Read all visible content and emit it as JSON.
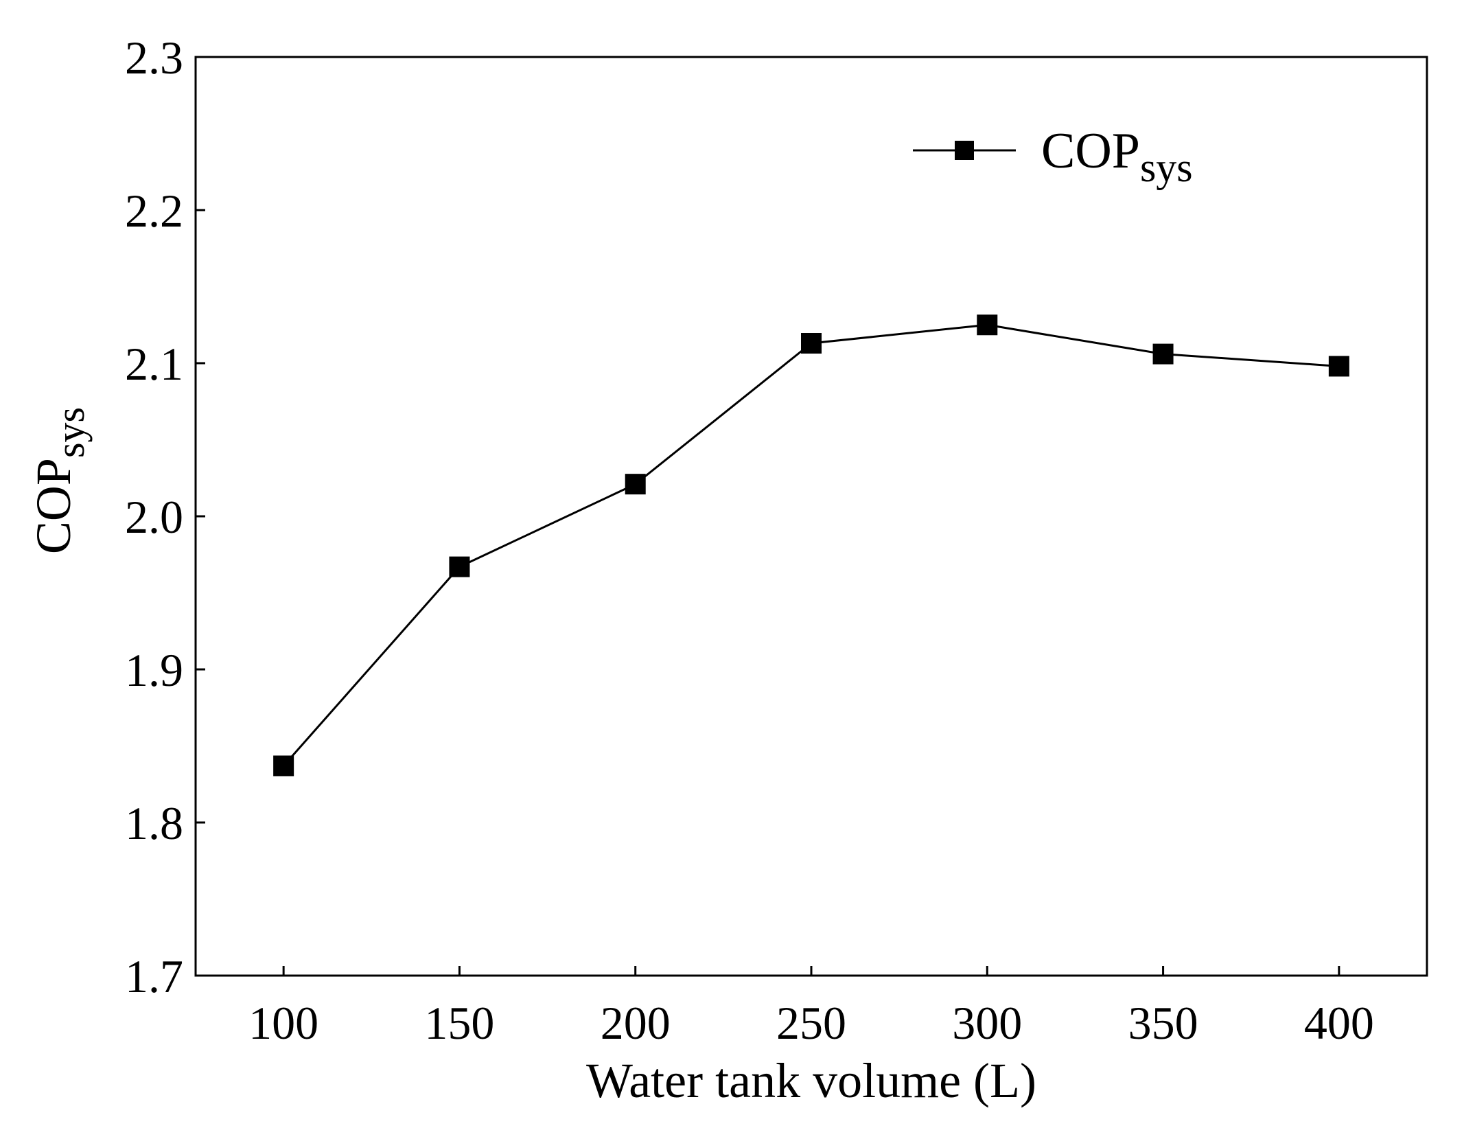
{
  "chart_data": {
    "type": "line",
    "title": "",
    "xlabel": "Water tank volume (L)",
    "ylabel_main": "COP",
    "ylabel_sub": "sys",
    "x": [
      100,
      150,
      200,
      250,
      300,
      350,
      400
    ],
    "series": [
      {
        "name_main": "COP",
        "name_sub": "sys",
        "values": [
          1.837,
          1.967,
          2.021,
          2.113,
          2.125,
          2.106,
          2.098
        ],
        "marker": "square",
        "color": "#000000"
      }
    ],
    "xlim": [
      75,
      425
    ],
    "ylim": [
      1.7,
      2.3
    ],
    "xticks": [
      "100",
      "150",
      "200",
      "250",
      "300",
      "350",
      "400"
    ],
    "yticks": [
      "1.7",
      "1.8",
      "1.9",
      "2.0",
      "2.1",
      "2.2",
      "2.3"
    ],
    "legend_position": "top-right",
    "grid": false
  }
}
